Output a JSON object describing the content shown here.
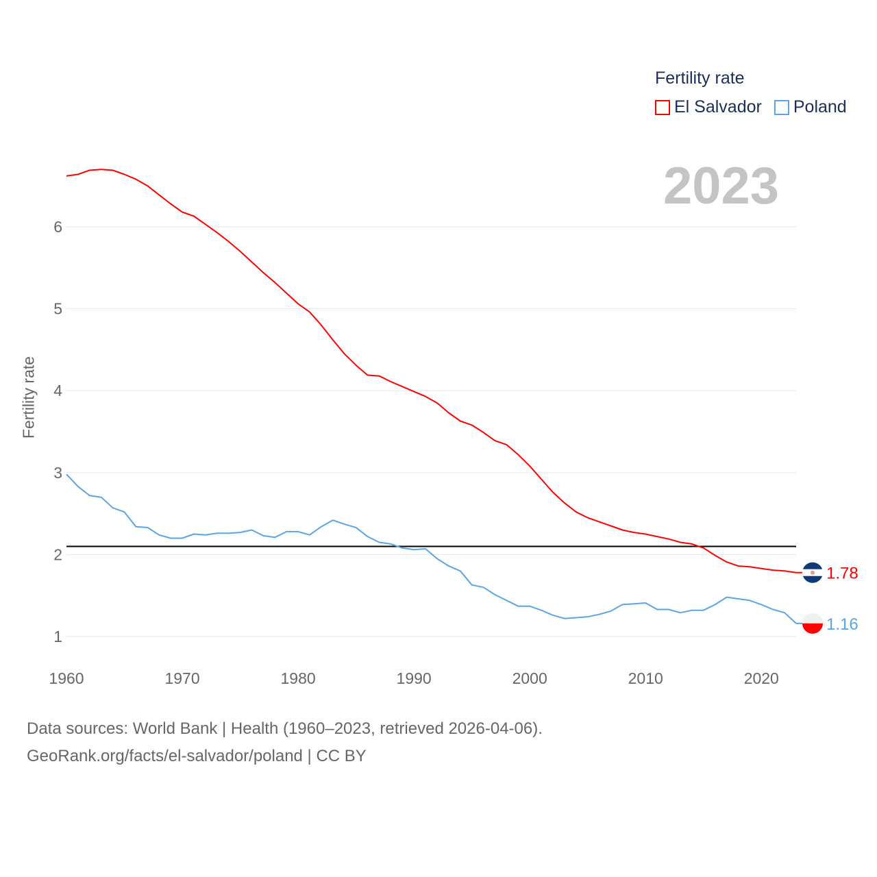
{
  "chart_data": {
    "type": "line",
    "title": "Fertility rate",
    "current_year_label": "2023",
    "xlabel": "",
    "ylabel": "Fertility rate",
    "xlim": [
      1960,
      2023
    ],
    "ylim": [
      0.7,
      6.8
    ],
    "x_ticks": [
      "1960",
      "1970",
      "1980",
      "1990",
      "2000",
      "2010",
      "2020"
    ],
    "y_ticks": [
      "1",
      "2",
      "3",
      "4",
      "5",
      "6"
    ],
    "grid": true,
    "legend_position": "top-right",
    "reference_line": 2.1,
    "x": [
      1960,
      1961,
      1962,
      1963,
      1964,
      1965,
      1966,
      1967,
      1968,
      1969,
      1970,
      1971,
      1972,
      1973,
      1974,
      1975,
      1976,
      1977,
      1978,
      1979,
      1980,
      1981,
      1982,
      1983,
      1984,
      1985,
      1986,
      1987,
      1988,
      1989,
      1990,
      1991,
      1992,
      1993,
      1994,
      1995,
      1996,
      1997,
      1998,
      1999,
      2000,
      2001,
      2002,
      2003,
      2004,
      2005,
      2006,
      2007,
      2008,
      2009,
      2010,
      2011,
      2012,
      2013,
      2014,
      2015,
      2016,
      2017,
      2018,
      2019,
      2020,
      2021,
      2022,
      2023
    ],
    "series": [
      {
        "name": "El Salvador",
        "color": "#ff0000",
        "end_label": "1.78",
        "values": [
          6.62,
          6.64,
          6.69,
          6.7,
          6.69,
          6.64,
          6.58,
          6.5,
          6.39,
          6.28,
          6.18,
          6.13,
          6.03,
          5.93,
          5.82,
          5.7,
          5.57,
          5.44,
          5.32,
          5.19,
          5.06,
          4.96,
          4.8,
          4.62,
          4.45,
          4.31,
          4.19,
          4.18,
          4.11,
          4.05,
          3.99,
          3.93,
          3.85,
          3.73,
          3.63,
          3.58,
          3.49,
          3.39,
          3.34,
          3.22,
          3.08,
          2.92,
          2.76,
          2.63,
          2.52,
          2.45,
          2.4,
          2.35,
          2.3,
          2.27,
          2.25,
          2.22,
          2.19,
          2.15,
          2.13,
          2.08,
          1.99,
          1.91,
          1.86,
          1.85,
          1.83,
          1.81,
          1.8,
          1.78
        ]
      },
      {
        "name": "Poland",
        "color": "#5aa5e8",
        "end_label": "1.16",
        "values": [
          2.98,
          2.83,
          2.72,
          2.7,
          2.57,
          2.52,
          2.34,
          2.33,
          2.24,
          2.2,
          2.2,
          2.25,
          2.24,
          2.26,
          2.26,
          2.27,
          2.3,
          2.23,
          2.21,
          2.28,
          2.28,
          2.24,
          2.34,
          2.42,
          2.37,
          2.33,
          2.22,
          2.15,
          2.13,
          2.08,
          2.06,
          2.07,
          1.95,
          1.86,
          1.8,
          1.63,
          1.6,
          1.51,
          1.44,
          1.37,
          1.37,
          1.32,
          1.26,
          1.22,
          1.23,
          1.24,
          1.27,
          1.31,
          1.39,
          1.4,
          1.41,
          1.33,
          1.33,
          1.29,
          1.32,
          1.32,
          1.39,
          1.48,
          1.46,
          1.44,
          1.39,
          1.33,
          1.29,
          1.16
        ]
      }
    ]
  },
  "footer": {
    "line1": "Data sources: World Bank | Health (1960–2023, retrieved 2026-04-06).",
    "line2": "GeoRank.org/facts/el-salvador/poland | CC BY"
  }
}
